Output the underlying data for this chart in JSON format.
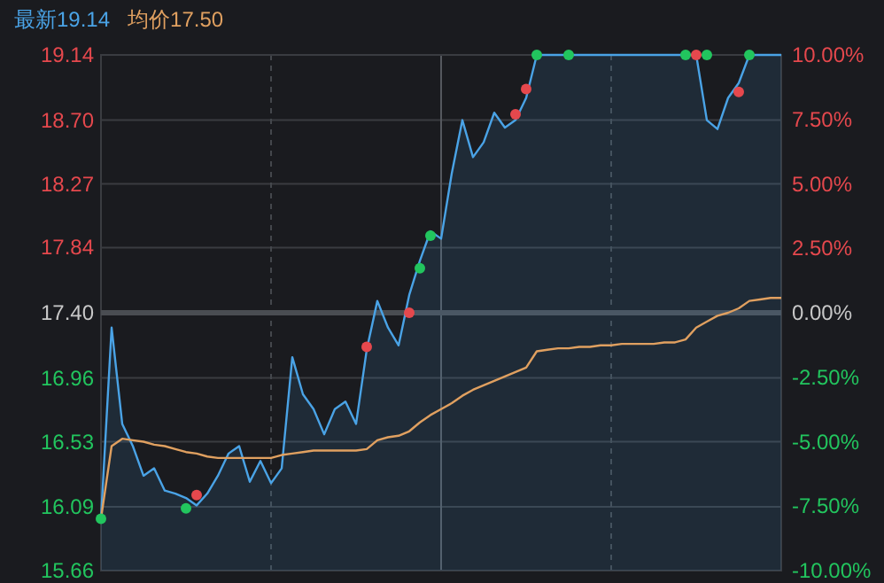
{
  "chart_data": {
    "type": "line",
    "title": "最新19.14",
    "subtitle": "均价17.50",
    "categories": [
      null,
      null,
      null,
      null,
      null,
      null,
      null,
      null,
      null,
      null,
      null,
      null,
      null,
      null,
      null,
      null,
      null,
      null,
      null,
      null,
      null,
      null,
      null,
      null,
      null,
      null,
      null,
      null,
      null,
      null,
      null,
      null,
      null,
      null,
      null,
      null,
      null,
      null,
      null,
      null,
      null,
      null,
      null,
      null,
      null,
      null,
      null,
      null,
      null,
      null,
      null,
      null,
      null,
      null,
      null,
      null,
      null,
      null,
      null,
      null,
      null,
      null,
      null,
      null,
      null
    ],
    "series": [
      {
        "type": "area",
        "color": "#4aa3e6",
        "values": [
          16.01,
          17.3,
          16.65,
          16.5,
          16.3,
          16.35,
          16.2,
          16.18,
          16.15,
          16.1,
          16.18,
          16.3,
          16.45,
          16.5,
          16.26,
          16.4,
          16.25,
          16.35,
          17.1,
          16.85,
          16.75,
          16.58,
          16.75,
          16.8,
          16.65,
          17.15,
          17.48,
          17.3,
          17.18,
          17.52,
          17.75,
          17.95,
          17.9,
          18.34,
          18.7,
          18.45,
          18.55,
          18.75,
          18.65,
          18.7,
          18.85,
          19.14,
          19.14,
          19.14,
          19.14,
          19.14,
          19.14,
          19.14,
          19.14,
          19.14,
          19.14,
          19.14,
          19.14,
          19.14,
          19.14,
          19.14,
          19.14,
          18.7,
          18.64,
          18.85,
          18.95,
          19.14,
          19.14,
          19.14,
          19.14
        ]
      },
      {
        "type": "line",
        "color": "#e0a060",
        "values": [
          16.01,
          16.5,
          16.55,
          16.54,
          16.53,
          16.51,
          16.5,
          16.48,
          16.46,
          16.45,
          16.43,
          16.42,
          16.42,
          16.42,
          16.42,
          16.42,
          16.42,
          16.44,
          16.45,
          16.46,
          16.47,
          16.47,
          16.47,
          16.47,
          16.47,
          16.48,
          16.54,
          16.56,
          16.57,
          16.6,
          16.66,
          16.71,
          16.75,
          16.79,
          16.84,
          16.88,
          16.91,
          16.94,
          16.97,
          17.0,
          17.03,
          17.14,
          17.15,
          17.16,
          17.16,
          17.17,
          17.17,
          17.18,
          17.18,
          17.19,
          17.19,
          17.19,
          17.19,
          17.2,
          17.2,
          17.22,
          17.3,
          17.34,
          17.38,
          17.4,
          17.43,
          17.48,
          17.49,
          17.5,
          17.5
        ]
      },
      {
        "type": "scatter",
        "marker": "circle",
        "color": "#22c55e",
        "values": [
          16.01,
          null,
          null,
          null,
          null,
          null,
          null,
          null,
          16.08,
          null,
          null,
          null,
          null,
          null,
          null,
          null,
          null,
          null,
          null,
          null,
          null,
          null,
          null,
          null,
          null,
          null,
          null,
          null,
          null,
          null,
          17.7,
          17.92,
          null,
          null,
          null,
          null,
          null,
          null,
          null,
          null,
          null,
          19.14,
          null,
          null,
          19.14,
          null,
          null,
          null,
          null,
          null,
          null,
          null,
          null,
          null,
          null,
          19.14,
          null,
          19.14,
          null,
          null,
          null,
          19.14,
          null,
          null,
          null
        ]
      },
      {
        "type": "scatter",
        "marker": "circle",
        "color": "#e5484d",
        "values": [
          null,
          null,
          null,
          null,
          null,
          null,
          null,
          null,
          null,
          16.17,
          null,
          null,
          null,
          null,
          null,
          null,
          null,
          null,
          null,
          null,
          null,
          null,
          null,
          null,
          null,
          17.17,
          null,
          null,
          null,
          17.4,
          null,
          null,
          null,
          null,
          null,
          null,
          null,
          null,
          null,
          18.74,
          18.91,
          null,
          null,
          null,
          null,
          null,
          null,
          null,
          null,
          null,
          null,
          null,
          null,
          null,
          null,
          null,
          19.14,
          null,
          null,
          null,
          18.89,
          null,
          null,
          null,
          null
        ]
      }
    ],
    "ylim": [
      15.66,
      19.14
    ],
    "yticks": [
      15.66,
      16.09,
      16.53,
      16.96,
      {
        "value": 17.4,
        "label": "17.40"
      },
      17.84,
      18.27,
      {
        "value": 18.7,
        "label": "18.70"
      },
      19.14
    ],
    "y2lim": [
      -10,
      10
    ],
    "y2ticks": [
      {
        "value": -10,
        "label": "-10.00%"
      },
      {
        "value": -7.5,
        "label": "-7.50%"
      },
      {
        "value": -5,
        "label": "-5.00%"
      },
      {
        "value": -2.5,
        "label": "-2.50%"
      },
      {
        "value": 0,
        "label": "0.00%"
      },
      {
        "value": 2.5,
        "label": "2.50%"
      },
      {
        "value": 5,
        "label": "5.00%"
      },
      {
        "value": 7.5,
        "label": "7.50%"
      },
      {
        "value": 10,
        "label": "10.00%"
      }
    ],
    "ref_lines": [
      {
        "axis": "y",
        "value": 17.4,
        "color": "#4a4d52"
      }
    ],
    "grid": true
  }
}
